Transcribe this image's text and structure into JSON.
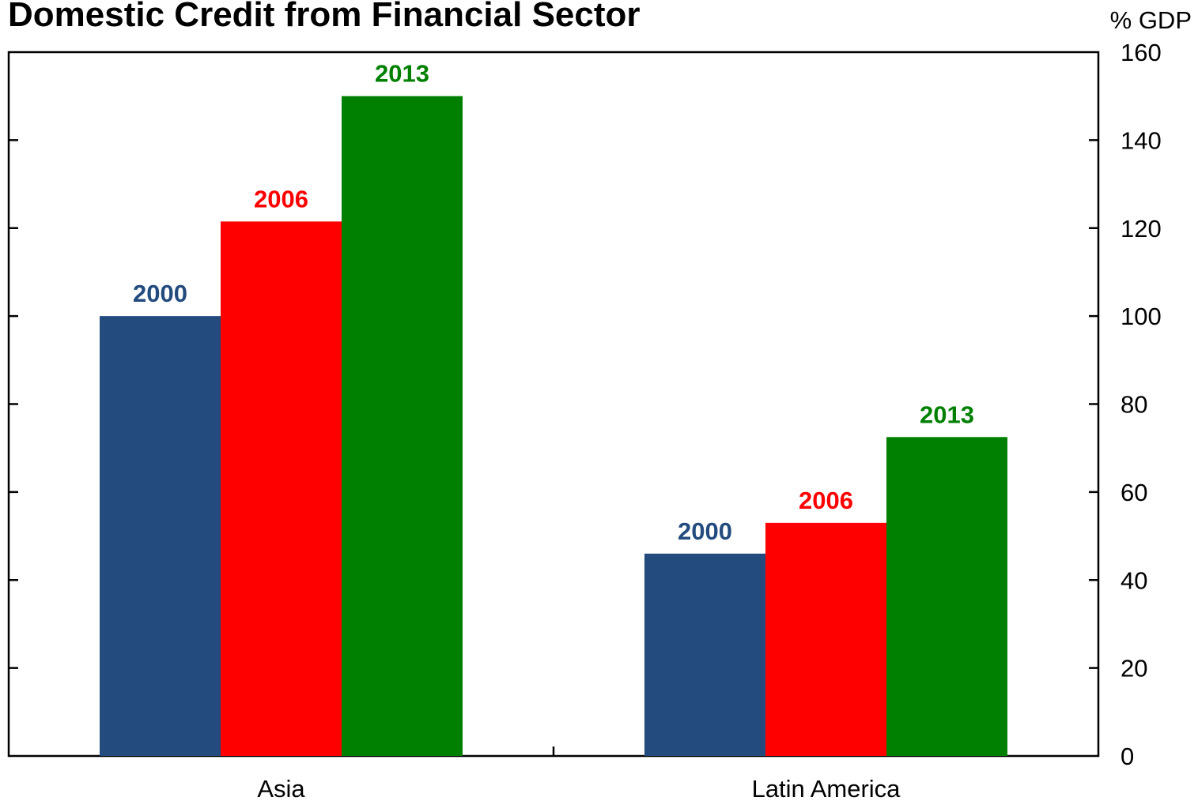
{
  "chart_data": {
    "type": "bar",
    "title": "Domestic Credit from Financial Sector",
    "y_unit": "% GDP",
    "ylim": [
      0,
      160
    ],
    "yticks": [
      0,
      20,
      40,
      60,
      80,
      100,
      120,
      140,
      160
    ],
    "y_axis_side": "right",
    "grid": false,
    "legend": "none",
    "categories": [
      "Asia",
      "Latin America"
    ],
    "series": [
      {
        "name": "2000",
        "color": "#234B7E",
        "values": [
          100,
          46
        ]
      },
      {
        "name": "2006",
        "color": "#FF0000",
        "values": [
          121.5,
          53
        ]
      },
      {
        "name": "2013",
        "color": "#008000",
        "values": [
          150,
          72.5
        ]
      }
    ]
  }
}
